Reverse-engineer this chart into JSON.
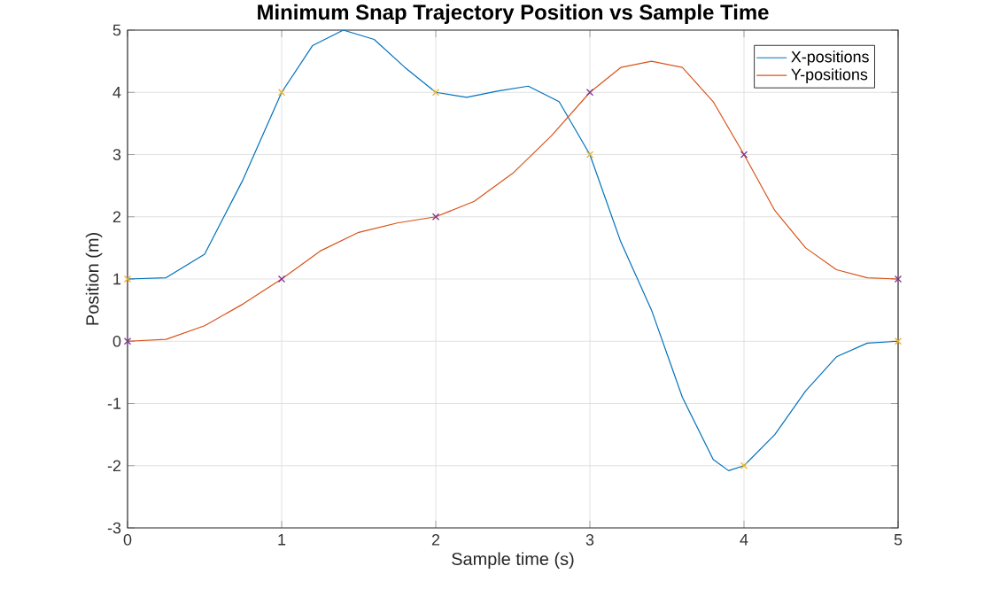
{
  "chart_data": {
    "type": "line",
    "title": "**Minimum Snap Trajectory Position vs Sample Time**",
    "xlabel": "Sample time (s)",
    "ylabel": "Position (m)",
    "xlim": [
      0,
      5
    ],
    "ylim": [
      -3,
      5
    ],
    "xticks": [
      0,
      1,
      2,
      3,
      4,
      5
    ],
    "yticks": [
      -3,
      -2,
      -1,
      0,
      1,
      2,
      3,
      4,
      5
    ],
    "grid": true,
    "legend": "top right",
    "series": [
      {
        "name": "X-positions",
        "color": "#0072bd",
        "x": [
          0,
          0.25,
          0.5,
          0.75,
          1,
          1.2,
          1.4,
          1.6,
          1.8,
          2,
          2.2,
          2.4,
          2.6,
          2.8,
          3,
          3.2,
          3.4,
          3.6,
          3.8,
          3.9,
          4,
          4.2,
          4.4,
          4.6,
          4.8,
          5
        ],
        "values": [
          1,
          1.02,
          1.4,
          2.6,
          4,
          4.75,
          5,
          4.85,
          4.4,
          4,
          3.92,
          4.02,
          4.1,
          3.85,
          3,
          1.6,
          0.5,
          -0.9,
          -1.9,
          -2.08,
          -2,
          -1.5,
          -0.8,
          -0.25,
          -0.03,
          0
        ]
      },
      {
        "name": "Y-positions",
        "color": "#d95319",
        "x": [
          0,
          0.25,
          0.5,
          0.75,
          1,
          1.25,
          1.5,
          1.75,
          2,
          2.25,
          2.5,
          2.75,
          3,
          3.2,
          3.4,
          3.6,
          3.8,
          4,
          4.2,
          4.4,
          4.6,
          4.8,
          5
        ],
        "values": [
          0,
          0.03,
          0.25,
          0.6,
          1,
          1.45,
          1.75,
          1.9,
          2,
          2.25,
          2.7,
          3.3,
          4,
          4.4,
          4.5,
          4.4,
          3.85,
          3,
          2.1,
          1.5,
          1.15,
          1.02,
          1
        ]
      },
      {
        "type": "scatter",
        "marker": "cross",
        "color": "#edb120",
        "x": [
          0,
          1,
          2,
          3,
          4,
          5
        ],
        "values": [
          1,
          4,
          4,
          3,
          -2,
          0
        ]
      },
      {
        "type": "scatter",
        "marker": "cross",
        "color": "#7e2f8e",
        "x": [
          0,
          1,
          2,
          3,
          4,
          5
        ],
        "values": [
          0,
          1,
          2,
          4,
          3,
          1
        ]
      }
    ]
  }
}
